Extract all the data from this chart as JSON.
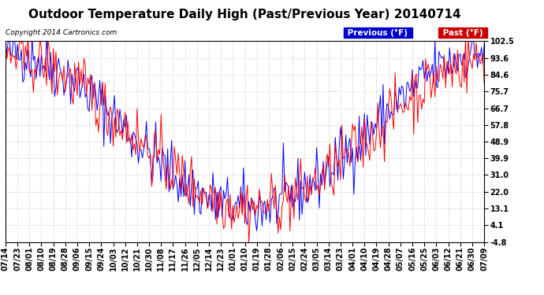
{
  "title": "Outdoor Temperature Daily High (Past/Previous Year) 20140714",
  "copyright": "Copyright 2014 Cartronics.com",
  "legend_labels": [
    "Previous (°F)",
    "Past (°F)"
  ],
  "legend_colors": [
    "#0000cc",
    "#cc0000"
  ],
  "line_colors": [
    "#0000ff",
    "#ff0000"
  ],
  "yticks": [
    -4.8,
    4.1,
    13.1,
    22.0,
    31.0,
    39.9,
    48.9,
    57.8,
    66.7,
    75.7,
    84.6,
    93.6,
    102.5
  ],
  "ylim": [
    -4.8,
    102.5
  ],
  "background_color": "#ffffff",
  "plot_bg_color": "#ffffff",
  "grid_color": "#bbbbbb",
  "title_fontsize": 11,
  "tick_fontsize": 7,
  "copyright_fontsize": 6.5
}
